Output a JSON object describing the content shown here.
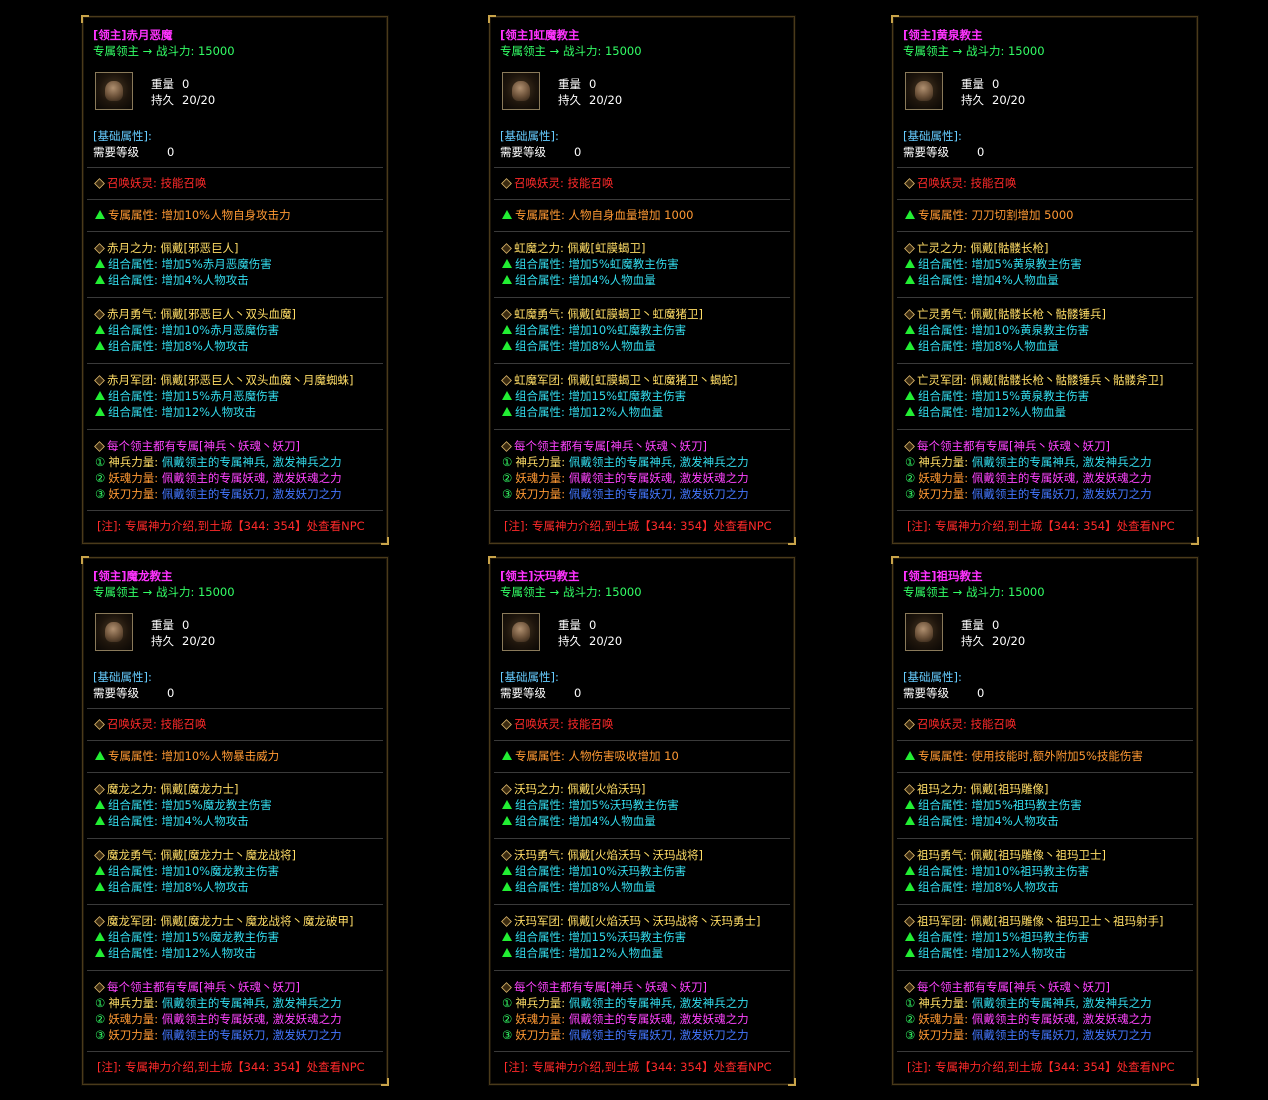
{
  "cards": [
    {
      "title": "[领主]赤月恶魔",
      "subtitle": "专属领主 → 战斗力: 15000",
      "icon": "demon-portrait-icon",
      "weight_label": "重量",
      "weight_value": "0",
      "durability_label": "持久",
      "durability_value": "20/20",
      "base_label": "[基础属性]:",
      "level_label": "需要等级",
      "level_value": "0",
      "summon": "召唤妖灵: 技能召唤",
      "exclusive": "专属属性: 增加10%人物自身攻击力",
      "set1": {
        "head": "赤月之力: 佩戴[邪恶巨人]",
        "a": "组合属性:  增加5%赤月恶魔伤害",
        "b": "组合属性:  增加4%人物攻击"
      },
      "set2": {
        "head": "赤月勇气: 佩戴[邪恶巨人丶双头血魔]",
        "a": "组合属性:  增加10%赤月恶魔伤害",
        "b": "组合属性:  增加8%人物攻击"
      },
      "set3": {
        "head": "赤月军团: 佩戴[邪恶巨人丶双头血魔丶月魔蜘蛛]",
        "a": "组合属性:  增加15%赤月恶魔伤害",
        "b": "组合属性:  增加12%人物攻击"
      }
    },
    {
      "title": "[领主]虹魔教主",
      "subtitle": "专属领主 → 战斗力: 15000",
      "icon": "demon-portrait-icon",
      "weight_label": "重量",
      "weight_value": "0",
      "durability_label": "持久",
      "durability_value": "20/20",
      "base_label": "[基础属性]:",
      "level_label": "需要等级",
      "level_value": "0",
      "summon": "召唤妖灵: 技能召唤",
      "exclusive": "专属属性: 人物自身血量增加 1000",
      "set1": {
        "head": "虹魔之力: 佩戴[虹膜蝎卫]",
        "a": "组合属性:  增加5%虹魔教主伤害",
        "b": "组合属性:  增加4%人物血量"
      },
      "set2": {
        "head": "虹魔勇气: 佩戴[虹膜蝎卫丶虹魔猪卫]",
        "a": "组合属性:  增加10%虹魔教主伤害",
        "b": "组合属性:  增加8%人物血量"
      },
      "set3": {
        "head": "虹魔军团: 佩戴[虹膜蝎卫丶虹魔猪卫丶蝎蛇]",
        "a": "组合属性:  增加15%虹魔教主伤害",
        "b": "组合属性:  增加12%人物血量"
      }
    },
    {
      "title": "[领主]黄泉教主",
      "subtitle": "专属领主 → 战斗力: 15000",
      "icon": "demon-portrait-icon",
      "weight_label": "重量",
      "weight_value": "0",
      "durability_label": "持久",
      "durability_value": "20/20",
      "base_label": "[基础属性]:",
      "level_label": "需要等级",
      "level_value": "0",
      "summon": "召唤妖灵: 技能召唤",
      "exclusive": "专属属性: 刀刀切割增加 5000",
      "set1": {
        "head": "亡灵之力: 佩戴[骷髅长枪]",
        "a": "组合属性:  增加5%黄泉教主伤害",
        "b": "组合属性:  增加4%人物血量"
      },
      "set2": {
        "head": "亡灵勇气: 佩戴[骷髅长枪丶骷髅锤兵]",
        "a": "组合属性:  增加10%黄泉教主伤害",
        "b": "组合属性:  增加8%人物血量"
      },
      "set3": {
        "head": "亡灵军团: 佩戴[骷髅长枪丶骷髅锤兵丶骷髅斧卫]",
        "a": "组合属性:  增加15%黄泉教主伤害",
        "b": "组合属性:  增加12%人物血量"
      }
    },
    {
      "title": "[领主]魔龙教主",
      "subtitle": "专属领主 → 战斗力: 15000",
      "icon": "demon-portrait-icon",
      "weight_label": "重量",
      "weight_value": "0",
      "durability_label": "持久",
      "durability_value": "20/20",
      "base_label": "[基础属性]:",
      "level_label": "需要等级",
      "level_value": "0",
      "summon": "召唤妖灵: 技能召唤",
      "exclusive": "专属属性: 增加10%人物暴击威力",
      "set1": {
        "head": "魔龙之力: 佩戴[魔龙力士]",
        "a": "组合属性:  增加5%魔龙教主伤害",
        "b": "组合属性:  增加4%人物攻击"
      },
      "set2": {
        "head": "魔龙勇气: 佩戴[魔龙力士丶魔龙战将]",
        "a": "组合属性:  增加10%魔龙教主伤害",
        "b": "组合属性:  增加8%人物攻击"
      },
      "set3": {
        "head": "魔龙军团: 佩戴[魔龙力士丶魔龙战将丶魔龙破甲]",
        "a": "组合属性:  增加15%魔龙教主伤害",
        "b": "组合属性:  增加12%人物攻击"
      }
    },
    {
      "title": "[领主]沃玛教主",
      "subtitle": "专属领主 → 战斗力: 15000",
      "icon": "demon-portrait-icon",
      "weight_label": "重量",
      "weight_value": "0",
      "durability_label": "持久",
      "durability_value": "20/20",
      "base_label": "[基础属性]:",
      "level_label": "需要等级",
      "level_value": "0",
      "summon": "召唤妖灵: 技能召唤",
      "exclusive": "专属属性: 人物伤害吸收增加 10",
      "set1": {
        "head": "沃玛之力: 佩戴[火焰沃玛]",
        "a": "组合属性:  增加5%沃玛教主伤害",
        "b": "组合属性:  增加4%人物血量"
      },
      "set2": {
        "head": "沃玛勇气: 佩戴[火焰沃玛丶沃玛战将]",
        "a": "组合属性:  增加10%沃玛教主伤害",
        "b": "组合属性:  增加8%人物血量"
      },
      "set3": {
        "head": "沃玛军团: 佩戴[火焰沃玛丶沃玛战将丶沃玛勇士]",
        "a": "组合属性:  增加15%沃玛教主伤害",
        "b": "组合属性:  增加12%人物血量"
      }
    },
    {
      "title": "[领主]祖玛教主",
      "subtitle": "专属领主 → 战斗力: 15000",
      "icon": "demon-portrait-icon",
      "weight_label": "重量",
      "weight_value": "0",
      "durability_label": "持久",
      "durability_value": "20/20",
      "base_label": "[基础属性]:",
      "level_label": "需要等级",
      "level_value": "0",
      "summon": "召唤妖灵: 技能召唤",
      "exclusive": "专属属性: 使用技能时,额外附加5%技能伤害",
      "set1": {
        "head": "祖玛之力: 佩戴[祖玛雕像]",
        "a": "组合属性:  增加5%祖玛教主伤害",
        "b": "组合属性:  增加4%人物攻击"
      },
      "set2": {
        "head": "祖玛勇气: 佩戴[祖玛雕像丶祖玛卫士]",
        "a": "组合属性:  增加10%祖玛教主伤害",
        "b": "组合属性:  增加8%人物攻击"
      },
      "set3": {
        "head": "祖玛军团: 佩戴[祖玛雕像丶祖玛卫士丶祖玛射手]",
        "a": "组合属性:  增加15%祖玛教主伤害",
        "b": "组合属性:  增加12%人物攻击"
      }
    }
  ],
  "common": {
    "lord_head": "每个领主都有专属[神兵丶妖魂丶妖刀]",
    "weapon_num": "①",
    "weapon_label": "神兵力量:",
    "weapon_text": "佩戴领主的专属神兵, 激发神兵之力",
    "soul_num": "②",
    "soul_label": "妖魂力量:",
    "soul_text": "佩戴领主的专属妖魂, 激发妖魂之力",
    "blade_num": "③",
    "blade_label": "妖刀力量:",
    "blade_text": "佩戴领主的专属妖刀, 激发妖刀之力",
    "note": "[注]: 专属神力介绍,到土城【344: 354】处查看NPC"
  }
}
